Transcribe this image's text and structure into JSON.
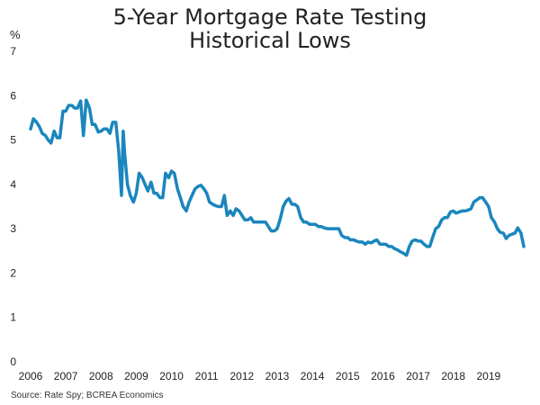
{
  "chart_data": {
    "type": "line",
    "title": [
      "5-Year Mortgage Rate Testing",
      "Historical Lows"
    ],
    "ylabel": "%",
    "xlabel": "",
    "source": "Source: Rate Spy; BCREA Economics",
    "xlim": [
      2006,
      2020
    ],
    "ylim": [
      0,
      7
    ],
    "yticks": [
      0,
      1,
      2,
      3,
      4,
      5,
      6,
      7
    ],
    "xticks": [
      "2006",
      "2007",
      "2008",
      "2009",
      "2010",
      "2011",
      "2012",
      "2013",
      "2014",
      "2015",
      "2016",
      "2017",
      "2018",
      "2019"
    ],
    "grid": false,
    "legend": "none",
    "line_color": "#1a86bd",
    "series": [
      {
        "points": [
          [
            2006.0,
            5.25
          ],
          [
            2006.08,
            5.48
          ],
          [
            2006.17,
            5.4
          ],
          [
            2006.25,
            5.3
          ],
          [
            2006.33,
            5.15
          ],
          [
            2006.42,
            5.1
          ],
          [
            2006.5,
            5.0
          ],
          [
            2006.58,
            4.93
          ],
          [
            2006.67,
            5.2
          ],
          [
            2006.75,
            5.05
          ],
          [
            2006.83,
            5.05
          ],
          [
            2006.92,
            5.65
          ],
          [
            2007.0,
            5.65
          ],
          [
            2007.08,
            5.78
          ],
          [
            2007.17,
            5.78
          ],
          [
            2007.25,
            5.72
          ],
          [
            2007.33,
            5.72
          ],
          [
            2007.42,
            5.88
          ],
          [
            2007.5,
            5.1
          ],
          [
            2007.58,
            5.9
          ],
          [
            2007.67,
            5.72
          ],
          [
            2007.75,
            5.35
          ],
          [
            2007.83,
            5.35
          ],
          [
            2007.92,
            5.18
          ],
          [
            2008.0,
            5.2
          ],
          [
            2008.08,
            5.25
          ],
          [
            2008.17,
            5.25
          ],
          [
            2008.25,
            5.15
          ],
          [
            2008.33,
            5.4
          ],
          [
            2008.42,
            5.4
          ],
          [
            2008.5,
            4.75
          ],
          [
            2008.58,
            3.75
          ],
          [
            2008.63,
            5.2
          ],
          [
            2008.67,
            4.7
          ],
          [
            2008.75,
            4.0
          ],
          [
            2008.83,
            3.75
          ],
          [
            2008.92,
            3.6
          ],
          [
            2009.0,
            3.8
          ],
          [
            2009.08,
            4.25
          ],
          [
            2009.17,
            4.15
          ],
          [
            2009.25,
            4.0
          ],
          [
            2009.33,
            3.85
          ],
          [
            2009.42,
            4.05
          ],
          [
            2009.5,
            3.8
          ],
          [
            2009.58,
            3.8
          ],
          [
            2009.67,
            3.7
          ],
          [
            2009.75,
            3.7
          ],
          [
            2009.83,
            4.25
          ],
          [
            2009.92,
            4.15
          ],
          [
            2010.0,
            4.3
          ],
          [
            2010.08,
            4.25
          ],
          [
            2010.17,
            3.9
          ],
          [
            2010.25,
            3.7
          ],
          [
            2010.33,
            3.5
          ],
          [
            2010.42,
            3.4
          ],
          [
            2010.5,
            3.6
          ],
          [
            2010.58,
            3.75
          ],
          [
            2010.67,
            3.9
          ],
          [
            2010.75,
            3.95
          ],
          [
            2010.83,
            3.98
          ],
          [
            2010.92,
            3.9
          ],
          [
            2011.0,
            3.8
          ],
          [
            2011.08,
            3.6
          ],
          [
            2011.17,
            3.55
          ],
          [
            2011.25,
            3.52
          ],
          [
            2011.33,
            3.5
          ],
          [
            2011.42,
            3.5
          ],
          [
            2011.5,
            3.75
          ],
          [
            2011.58,
            3.3
          ],
          [
            2011.67,
            3.4
          ],
          [
            2011.75,
            3.3
          ],
          [
            2011.83,
            3.45
          ],
          [
            2011.92,
            3.4
          ],
          [
            2012.0,
            3.3
          ],
          [
            2012.08,
            3.2
          ],
          [
            2012.17,
            3.2
          ],
          [
            2012.25,
            3.25
          ],
          [
            2012.33,
            3.15
          ],
          [
            2012.42,
            3.15
          ],
          [
            2012.5,
            3.15
          ],
          [
            2012.58,
            3.15
          ],
          [
            2012.67,
            3.15
          ],
          [
            2012.75,
            3.05
          ],
          [
            2012.83,
            2.95
          ],
          [
            2012.92,
            2.95
          ],
          [
            2013.0,
            3.0
          ],
          [
            2013.08,
            3.2
          ],
          [
            2013.17,
            3.5
          ],
          [
            2013.25,
            3.62
          ],
          [
            2013.33,
            3.68
          ],
          [
            2013.42,
            3.55
          ],
          [
            2013.5,
            3.55
          ],
          [
            2013.58,
            3.5
          ],
          [
            2013.67,
            3.25
          ],
          [
            2013.75,
            3.15
          ],
          [
            2013.83,
            3.15
          ],
          [
            2013.92,
            3.1
          ],
          [
            2014.0,
            3.1
          ],
          [
            2014.08,
            3.1
          ],
          [
            2014.17,
            3.05
          ],
          [
            2014.25,
            3.05
          ],
          [
            2014.33,
            3.02
          ],
          [
            2014.42,
            3.0
          ],
          [
            2014.5,
            3.0
          ],
          [
            2014.58,
            3.0
          ],
          [
            2014.67,
            3.0
          ],
          [
            2014.75,
            3.0
          ],
          [
            2014.83,
            2.85
          ],
          [
            2014.92,
            2.8
          ],
          [
            2015.0,
            2.8
          ],
          [
            2015.08,
            2.75
          ],
          [
            2015.17,
            2.75
          ],
          [
            2015.25,
            2.72
          ],
          [
            2015.33,
            2.7
          ],
          [
            2015.42,
            2.7
          ],
          [
            2015.5,
            2.65
          ],
          [
            2015.58,
            2.7
          ],
          [
            2015.67,
            2.68
          ],
          [
            2015.75,
            2.72
          ],
          [
            2015.83,
            2.75
          ],
          [
            2015.92,
            2.65
          ],
          [
            2016.0,
            2.65
          ],
          [
            2016.08,
            2.65
          ],
          [
            2016.17,
            2.6
          ],
          [
            2016.25,
            2.6
          ],
          [
            2016.33,
            2.55
          ],
          [
            2016.42,
            2.52
          ],
          [
            2016.5,
            2.48
          ],
          [
            2016.58,
            2.45
          ],
          [
            2016.67,
            2.4
          ],
          [
            2016.75,
            2.6
          ],
          [
            2016.83,
            2.72
          ],
          [
            2016.92,
            2.75
          ],
          [
            2017.0,
            2.72
          ],
          [
            2017.08,
            2.72
          ],
          [
            2017.17,
            2.65
          ],
          [
            2017.25,
            2.6
          ],
          [
            2017.33,
            2.6
          ],
          [
            2017.42,
            2.82
          ],
          [
            2017.5,
            3.0
          ],
          [
            2017.58,
            3.05
          ],
          [
            2017.67,
            3.2
          ],
          [
            2017.75,
            3.25
          ],
          [
            2017.83,
            3.25
          ],
          [
            2017.92,
            3.38
          ],
          [
            2018.0,
            3.4
          ],
          [
            2018.08,
            3.35
          ],
          [
            2018.17,
            3.38
          ],
          [
            2018.25,
            3.4
          ],
          [
            2018.33,
            3.4
          ],
          [
            2018.42,
            3.42
          ],
          [
            2018.5,
            3.45
          ],
          [
            2018.58,
            3.6
          ],
          [
            2018.67,
            3.65
          ],
          [
            2018.75,
            3.7
          ],
          [
            2018.83,
            3.7
          ],
          [
            2018.92,
            3.6
          ],
          [
            2019.0,
            3.5
          ],
          [
            2019.08,
            3.25
          ],
          [
            2019.17,
            3.15
          ],
          [
            2019.25,
            3.0
          ],
          [
            2019.33,
            2.92
          ],
          [
            2019.42,
            2.9
          ],
          [
            2019.5,
            2.78
          ],
          [
            2019.58,
            2.85
          ],
          [
            2019.67,
            2.88
          ],
          [
            2019.75,
            2.9
          ],
          [
            2019.83,
            3.02
          ],
          [
            2019.92,
            2.9
          ],
          [
            2020.0,
            2.6
          ]
        ]
      }
    ]
  }
}
